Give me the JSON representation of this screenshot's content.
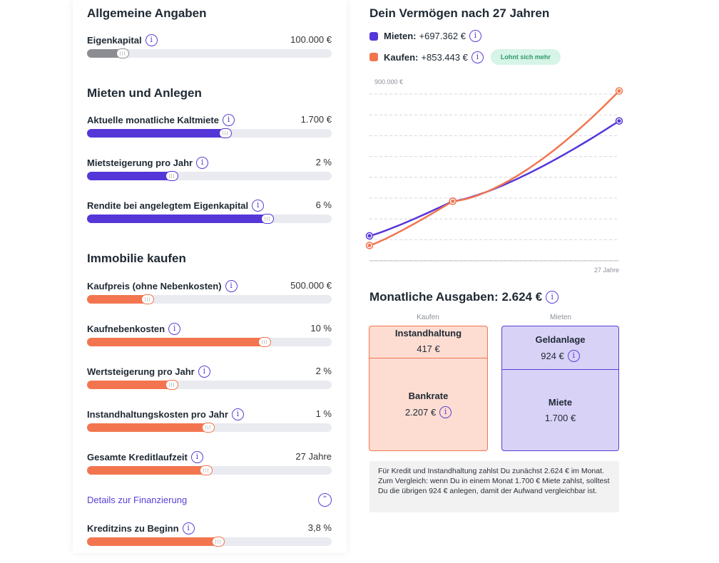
{
  "left": {
    "sections": {
      "general": "Allgemeine Angaben",
      "rent": "Mieten und Anlegen",
      "buy": "Immobilie kaufen"
    },
    "sliders": [
      {
        "label": "Eigenkapital",
        "value": "100.000 €",
        "fill_fraction": 0.17,
        "color": "#8b8d92"
      },
      {
        "label": "Aktuelle monatliche Kaltmiete",
        "value": "1.700 €",
        "fill_fraction": 0.59,
        "color": "#5537d8"
      },
      {
        "label": "Mietsteigerung pro Jahr",
        "value": "2 %",
        "fill_fraction": 0.37,
        "color": "#5537d8"
      },
      {
        "label": "Rendite bei angelegtem Eigenkapital",
        "value": "6 %",
        "fill_fraction": 0.76,
        "color": "#5537d8"
      },
      {
        "label": "Kaufpreis (ohne Nebenkosten)",
        "value": "500.000 €",
        "fill_fraction": 0.27,
        "color": "#f2754f"
      },
      {
        "label": "Kaufnebenkosten",
        "value": "10 %",
        "fill_fraction": 0.75,
        "color": "#f2754f"
      },
      {
        "label": "Wertsteigerung pro Jahr",
        "value": "2 %",
        "fill_fraction": 0.37,
        "color": "#f2754f"
      },
      {
        "label": "Instandhaltungskosten pro Jahr",
        "value": "1 %",
        "fill_fraction": 0.52,
        "color": "#f2754f"
      },
      {
        "label": "Gesamte Kreditlaufzeit",
        "value": "27 Jahre",
        "fill_fraction": 0.51,
        "color": "#f2754f"
      },
      {
        "label": "Kreditzins zu Beginn",
        "value": "3,8 %",
        "fill_fraction": 0.56,
        "color": "#f2754f"
      }
    ],
    "details_link": "Details zur Finanzierung"
  },
  "right": {
    "title": "Dein Vermögen nach 27 Jahren",
    "legend": {
      "rent_label": "Mieten:",
      "rent_value": "+697.362 €",
      "buy_label": "Kaufen:",
      "buy_value": "+853.443 €",
      "badge": "Lohnt sich mehr"
    },
    "colors": {
      "rent": "#5537d8",
      "buy": "#f2754f"
    },
    "expenses": {
      "title": "Monatliche Ausgaben: 2.624 €",
      "buy_header": "Kaufen",
      "rent_header": "Mieten",
      "maintenance_label": "Instandhaltung",
      "maintenance_value": "417 €",
      "bank_label": "Bankrate",
      "bank_value": "2.207 €",
      "invest_label": "Geldanlage",
      "invest_value": "924 €",
      "rent_label": "Miete",
      "rent_value": "1.700 €"
    },
    "note": "Für Kredit und Instandhaltung zahlst Du zunächst 2.624 € im Monat. Zum Vergleich: wenn Du in einem Monat 1.700 € Miete zahlst, solltest Du die übrigen 924 € anlegen, damit der Aufwand vergleichbar ist."
  },
  "chart_data": {
    "type": "line",
    "x": [
      0,
      9,
      27
    ],
    "xlim": [
      0,
      27
    ],
    "ylim": [
      -30000,
      900000
    ],
    "y_tick_label": "900.000 €",
    "x_tick_label": "27 Jahre",
    "gridlines": 9,
    "series": [
      {
        "name": "Mieten",
        "values": [
          100000,
          280000,
          697362
        ],
        "curve": 1.35
      },
      {
        "name": "Kaufen",
        "values": [
          50000,
          280000,
          853443
        ],
        "curve": 1.55
      }
    ]
  }
}
